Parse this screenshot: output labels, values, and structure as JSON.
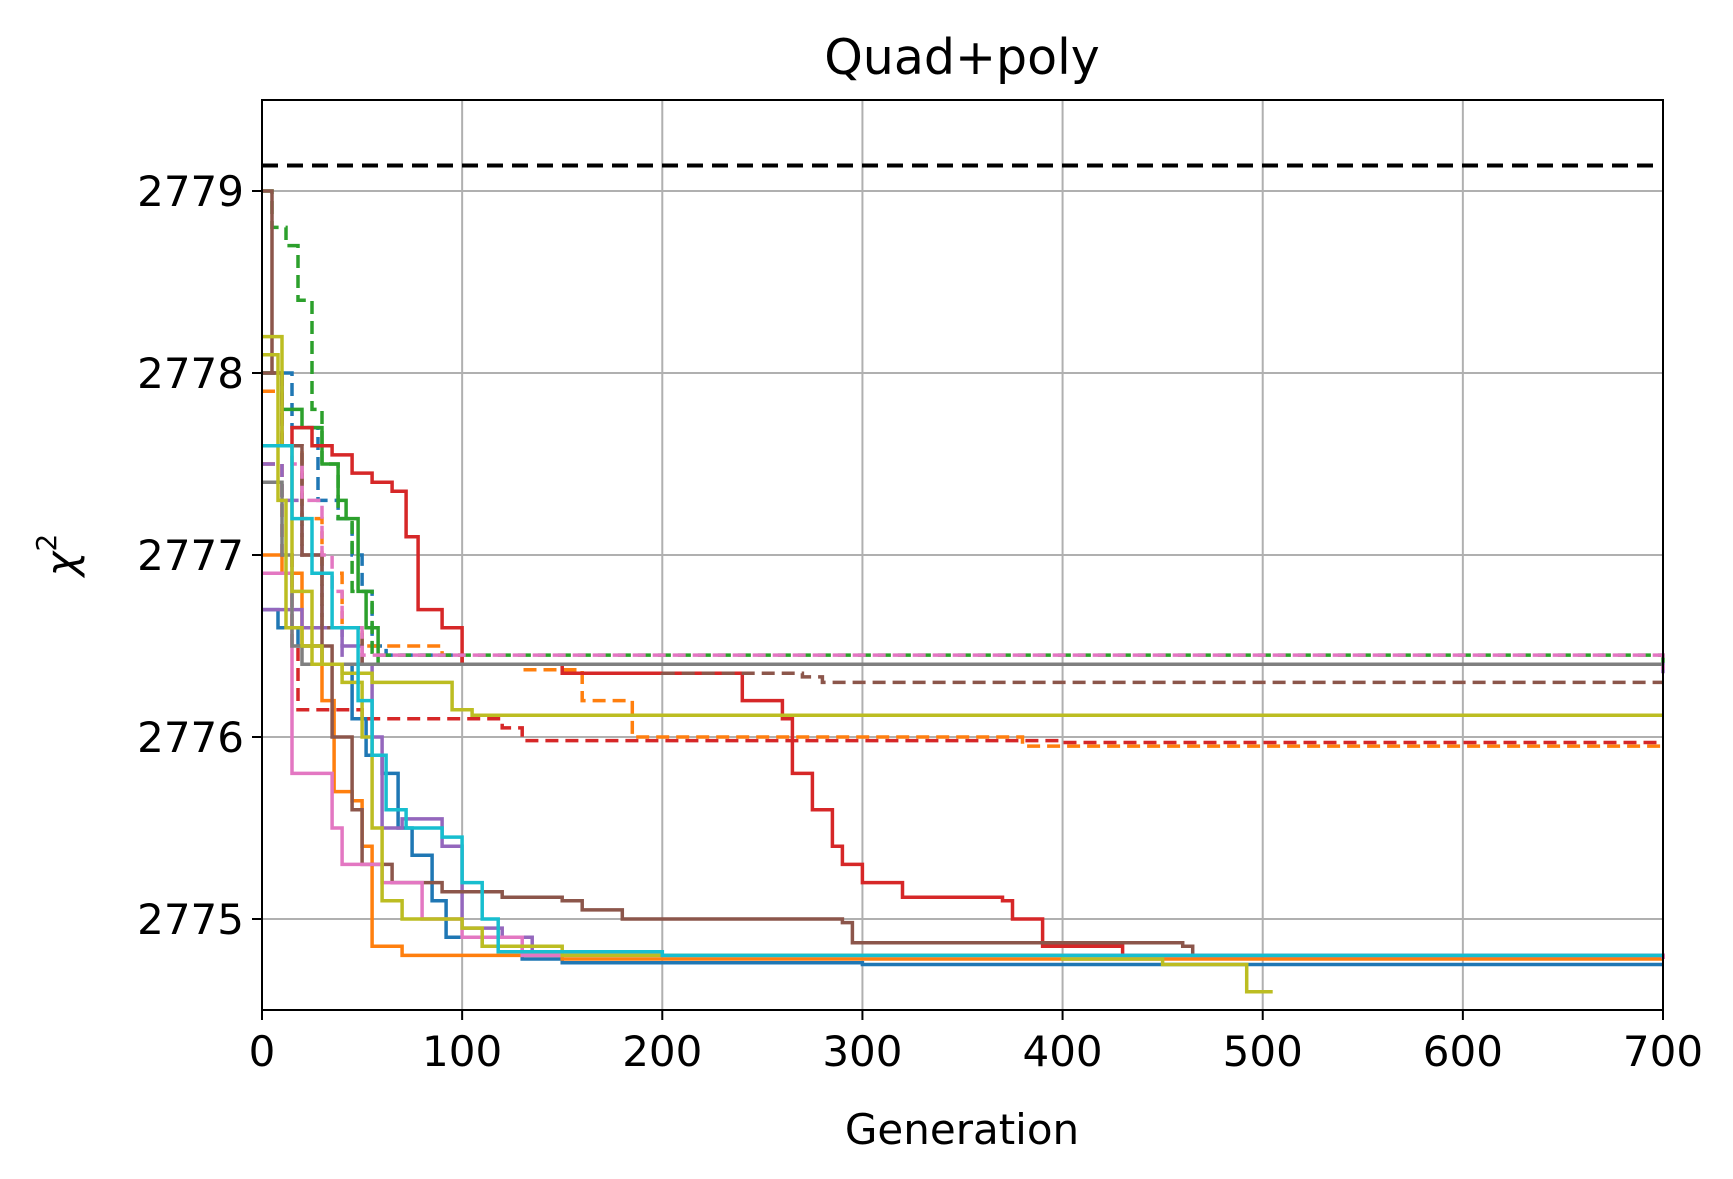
{
  "chart_data": {
    "type": "line",
    "title": "Quad+poly",
    "xlabel": "Generation",
    "ylabel": "χ",
    "ylabel_sup": "2",
    "xlim": [
      0,
      700
    ],
    "ylim": [
      2774.5,
      2779.5
    ],
    "x_ticks": [
      0,
      100,
      200,
      300,
      400,
      500,
      600,
      700
    ],
    "y_ticks": [
      2775,
      2776,
      2777,
      2778,
      2779
    ],
    "x_tick_labels": [
      "0",
      "100",
      "200",
      "300",
      "400",
      "500",
      "600",
      "700"
    ],
    "y_tick_labels": [
      "2775",
      "2776",
      "2777",
      "2778",
      "2779"
    ],
    "grid": true,
    "legend": "none",
    "reference_line": {
      "y": 2779.14,
      "color": "#000000",
      "style": "dashed"
    },
    "series": [
      {
        "color": "#1f77b4",
        "style": "solid",
        "points": [
          [
            0,
            2776.7
          ],
          [
            8,
            2776.6
          ],
          [
            18,
            2776.5
          ],
          [
            30,
            2776.4
          ],
          [
            45,
            2776.1
          ],
          [
            52,
            2775.9
          ],
          [
            60,
            2775.8
          ],
          [
            68,
            2775.5
          ],
          [
            75,
            2775.35
          ],
          [
            85,
            2775.1
          ],
          [
            92,
            2774.9
          ],
          [
            110,
            2774.85
          ],
          [
            130,
            2774.78
          ],
          [
            150,
            2774.76
          ],
          [
            300,
            2774.75
          ],
          [
            700,
            2774.75
          ]
        ]
      },
      {
        "color": "#1f77b4",
        "style": "dashed",
        "points": [
          [
            0,
            2778.0
          ],
          [
            15,
            2777.7
          ],
          [
            28,
            2777.3
          ],
          [
            38,
            2777.2
          ],
          [
            45,
            2777.0
          ],
          [
            50,
            2776.8
          ],
          [
            55,
            2776.5
          ],
          [
            62,
            2776.45
          ],
          [
            100,
            2776.4
          ],
          [
            700,
            2776.4
          ]
        ]
      },
      {
        "color": "#ff7f0e",
        "style": "solid",
        "points": [
          [
            0,
            2777.0
          ],
          [
            10,
            2776.9
          ],
          [
            20,
            2776.5
          ],
          [
            30,
            2776.2
          ],
          [
            36,
            2775.7
          ],
          [
            45,
            2775.65
          ],
          [
            50,
            2775.4
          ],
          [
            55,
            2774.85
          ],
          [
            70,
            2774.8
          ],
          [
            150,
            2774.78
          ],
          [
            700,
            2774.78
          ]
        ]
      },
      {
        "color": "#ff7f0e",
        "style": "dashed",
        "points": [
          [
            0,
            2777.9
          ],
          [
            10,
            2777.6
          ],
          [
            20,
            2777.2
          ],
          [
            30,
            2776.9
          ],
          [
            40,
            2776.6
          ],
          [
            50,
            2776.5
          ],
          [
            90,
            2776.45
          ],
          [
            100,
            2776.4
          ],
          [
            130,
            2776.37
          ],
          [
            160,
            2776.2
          ],
          [
            180,
            2776.2
          ],
          [
            185,
            2776.0
          ],
          [
            300,
            2776.0
          ],
          [
            380,
            2775.95
          ],
          [
            700,
            2775.95
          ]
        ]
      },
      {
        "color": "#2ca02c",
        "style": "solid",
        "points": [
          [
            0,
            2778.0
          ],
          [
            10,
            2777.8
          ],
          [
            20,
            2777.7
          ],
          [
            30,
            2777.5
          ],
          [
            38,
            2777.3
          ],
          [
            42,
            2777.2
          ],
          [
            48,
            2776.8
          ],
          [
            52,
            2776.6
          ],
          [
            58,
            2776.4
          ],
          [
            700,
            2776.4
          ]
        ]
      },
      {
        "color": "#2ca02c",
        "style": "dashed",
        "points": [
          [
            0,
            2779.0
          ],
          [
            5,
            2778.8
          ],
          [
            12,
            2778.7
          ],
          [
            18,
            2778.4
          ],
          [
            25,
            2777.8
          ],
          [
            30,
            2777.5
          ],
          [
            38,
            2777.2
          ],
          [
            45,
            2776.8
          ],
          [
            55,
            2776.45
          ],
          [
            700,
            2776.4
          ]
        ]
      },
      {
        "color": "#d62728",
        "style": "solid",
        "points": [
          [
            0,
            2777.6
          ],
          [
            15,
            2777.7
          ],
          [
            25,
            2777.6
          ],
          [
            35,
            2777.55
          ],
          [
            45,
            2777.45
          ],
          [
            55,
            2777.4
          ],
          [
            65,
            2777.35
          ],
          [
            72,
            2777.1
          ],
          [
            78,
            2776.7
          ],
          [
            90,
            2776.6
          ],
          [
            100,
            2776.4
          ],
          [
            150,
            2776.35
          ],
          [
            230,
            2776.35
          ],
          [
            240,
            2776.2
          ],
          [
            260,
            2776.1
          ],
          [
            265,
            2775.8
          ],
          [
            275,
            2775.6
          ],
          [
            285,
            2775.4
          ],
          [
            290,
            2775.3
          ],
          [
            300,
            2775.2
          ],
          [
            320,
            2775.12
          ],
          [
            370,
            2775.1
          ],
          [
            375,
            2775.0
          ],
          [
            390,
            2774.85
          ],
          [
            430,
            2774.8
          ],
          [
            700,
            2774.78
          ]
        ]
      },
      {
        "color": "#d62728",
        "style": "dashed",
        "points": [
          [
            0,
            2777.5
          ],
          [
            10,
            2777.0
          ],
          [
            15,
            2776.5
          ],
          [
            18,
            2776.15
          ],
          [
            50,
            2776.1
          ],
          [
            70,
            2776.1
          ],
          [
            120,
            2776.05
          ],
          [
            130,
            2775.98
          ],
          [
            400,
            2775.97
          ],
          [
            700,
            2775.97
          ]
        ]
      },
      {
        "color": "#9467bd",
        "style": "solid",
        "points": [
          [
            0,
            2776.7
          ],
          [
            20,
            2776.6
          ],
          [
            40,
            2776.5
          ],
          [
            50,
            2776.4
          ],
          [
            55,
            2776.0
          ],
          [
            60,
            2775.5
          ],
          [
            70,
            2775.55
          ],
          [
            90,
            2775.4
          ],
          [
            100,
            2774.95
          ],
          [
            120,
            2774.9
          ],
          [
            135,
            2774.82
          ],
          [
            200,
            2774.8
          ],
          [
            700,
            2774.8
          ]
        ]
      },
      {
        "color": "#9467bd",
        "style": "dashed",
        "points": [
          [
            0,
            2777.5
          ],
          [
            10,
            2777.3
          ],
          [
            20,
            2777.0
          ],
          [
            30,
            2776.6
          ],
          [
            40,
            2776.4
          ],
          [
            700,
            2776.35
          ]
        ]
      },
      {
        "color": "#8c564b",
        "style": "solid",
        "points": [
          [
            0,
            2779.0
          ],
          [
            5,
            2778.0
          ],
          [
            10,
            2777.6
          ],
          [
            20,
            2777.0
          ],
          [
            30,
            2776.5
          ],
          [
            35,
            2776.0
          ],
          [
            45,
            2775.6
          ],
          [
            50,
            2775.3
          ],
          [
            65,
            2775.2
          ],
          [
            90,
            2775.15
          ],
          [
            120,
            2775.12
          ],
          [
            150,
            2775.1
          ],
          [
            160,
            2775.05
          ],
          [
            180,
            2775.0
          ],
          [
            290,
            2774.98
          ],
          [
            295,
            2774.87
          ],
          [
            460,
            2774.85
          ],
          [
            465,
            2774.8
          ],
          [
            700,
            2774.78
          ]
        ]
      },
      {
        "color": "#8c564b",
        "style": "dashed",
        "points": [
          [
            0,
            2778.0
          ],
          [
            10,
            2777.6
          ],
          [
            20,
            2777.0
          ],
          [
            30,
            2776.6
          ],
          [
            50,
            2776.4
          ],
          [
            200,
            2776.35
          ],
          [
            270,
            2776.33
          ],
          [
            280,
            2776.3
          ],
          [
            700,
            2776.3
          ]
        ]
      },
      {
        "color": "#e377c2",
        "style": "solid",
        "points": [
          [
            0,
            2776.9
          ],
          [
            10,
            2776.9
          ],
          [
            15,
            2775.8
          ],
          [
            30,
            2775.8
          ],
          [
            35,
            2775.5
          ],
          [
            40,
            2775.3
          ],
          [
            60,
            2775.2
          ],
          [
            80,
            2775.0
          ],
          [
            100,
            2774.9
          ],
          [
            130,
            2774.8
          ],
          [
            700,
            2774.78
          ]
        ]
      },
      {
        "color": "#e377c2",
        "style": "dashed",
        "points": [
          [
            0,
            2777.6
          ],
          [
            15,
            2777.5
          ],
          [
            20,
            2777.3
          ],
          [
            30,
            2777.0
          ],
          [
            35,
            2776.8
          ],
          [
            40,
            2776.6
          ],
          [
            50,
            2776.45
          ],
          [
            100,
            2776.45
          ],
          [
            700,
            2776.37
          ]
        ]
      },
      {
        "color": "#7f7f7f",
        "style": "solid",
        "points": [
          [
            0,
            2777.4
          ],
          [
            10,
            2777.0
          ],
          [
            15,
            2776.5
          ],
          [
            20,
            2776.4
          ],
          [
            700,
            2776.4
          ]
        ]
      },
      {
        "color": "#bcbd22",
        "style": "solid",
        "points": [
          [
            0,
            2778.1
          ],
          [
            8,
            2777.3
          ],
          [
            12,
            2776.6
          ],
          [
            20,
            2776.5
          ],
          [
            30,
            2776.4
          ],
          [
            40,
            2776.35
          ],
          [
            55,
            2776.3
          ],
          [
            75,
            2776.3
          ],
          [
            95,
            2776.15
          ],
          [
            105,
            2776.12
          ],
          [
            700,
            2776.12
          ]
        ]
      },
      {
        "color": "#bcbd22",
        "style": "solid",
        "points": [
          [
            0,
            2778.2
          ],
          [
            10,
            2777.6
          ],
          [
            15,
            2776.8
          ],
          [
            25,
            2776.4
          ],
          [
            40,
            2776.3
          ],
          [
            50,
            2776.0
          ],
          [
            55,
            2775.5
          ],
          [
            60,
            2775.1
          ],
          [
            70,
            2775.0
          ],
          [
            100,
            2774.95
          ],
          [
            110,
            2774.85
          ],
          [
            150,
            2774.8
          ],
          [
            300,
            2774.8
          ],
          [
            400,
            2774.78
          ],
          [
            450,
            2774.75
          ],
          [
            490,
            2774.75
          ],
          [
            492,
            2774.6
          ],
          [
            505,
            2774.6
          ]
        ]
      },
      {
        "color": "#17becf",
        "style": "solid",
        "points": [
          [
            0,
            2777.6
          ],
          [
            15,
            2777.2
          ],
          [
            25,
            2776.9
          ],
          [
            35,
            2776.6
          ],
          [
            48,
            2776.2
          ],
          [
            55,
            2775.9
          ],
          [
            62,
            2775.6
          ],
          [
            72,
            2775.5
          ],
          [
            90,
            2775.45
          ],
          [
            100,
            2775.2
          ],
          [
            110,
            2775.0
          ],
          [
            118,
            2774.82
          ],
          [
            200,
            2774.8
          ],
          [
            700,
            2774.8
          ]
        ]
      }
    ]
  }
}
